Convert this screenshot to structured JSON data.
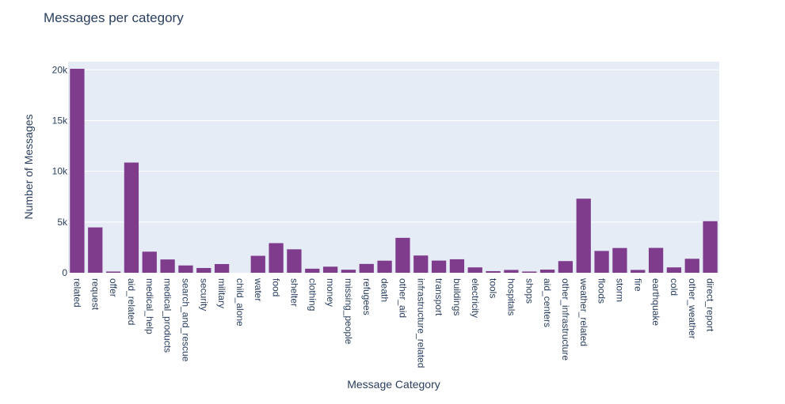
{
  "chart_data": {
    "type": "bar",
    "title": "Messages per category",
    "xlabel": "Message Category",
    "ylabel": "Number of Messages",
    "ylim": [
      0,
      20800
    ],
    "yticks": [
      0,
      5000,
      10000,
      15000,
      20000
    ],
    "ytick_labels": [
      "0",
      "5k",
      "10k",
      "15k",
      "20k"
    ],
    "grid": true,
    "bar_color": "#7f3c8d",
    "plot_bg": "#e5ecf6",
    "categories": [
      "related",
      "request",
      "offer",
      "aid_related",
      "medical_help",
      "medical_products",
      "search_and_rescue",
      "security",
      "military",
      "child_alone",
      "water",
      "food",
      "shelter",
      "clothing",
      "money",
      "missing_people",
      "refugees",
      "death",
      "other_aid",
      "infrastructure_related",
      "transport",
      "buildings",
      "electricity",
      "tools",
      "hospitals",
      "shops",
      "aid_centers",
      "other_infrastructure",
      "weather_related",
      "floods",
      "storm",
      "fire",
      "earthquake",
      "cold",
      "other_weather",
      "direct_report"
    ],
    "values": [
      20100,
      4470,
      120,
      10860,
      2080,
      1310,
      720,
      470,
      860,
      0,
      1670,
      2920,
      2310,
      400,
      600,
      300,
      870,
      1190,
      3440,
      1700,
      1200,
      1330,
      530,
      160,
      280,
      120,
      310,
      1150,
      7300,
      2150,
      2440,
      280,
      2450,
      530,
      1380,
      5080
    ]
  }
}
